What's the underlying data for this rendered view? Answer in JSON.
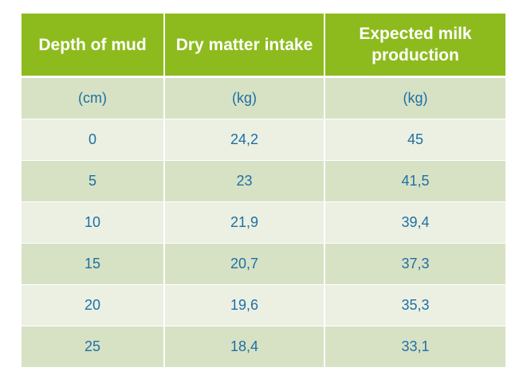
{
  "table": {
    "headers": [
      "Depth of mud",
      "Dry matter intake",
      "Expected milk production"
    ],
    "units": [
      "(cm)",
      "(kg)",
      "(kg)"
    ],
    "rows": [
      [
        "0",
        "24,2",
        "45"
      ],
      [
        "5",
        "23",
        "41,5"
      ],
      [
        "10",
        "21,9",
        "39,4"
      ],
      [
        "15",
        "20,7",
        "37,3"
      ],
      [
        "20",
        "19,6",
        "35,3"
      ],
      [
        "25",
        "18,4",
        "33,1"
      ]
    ]
  },
  "colors": {
    "header_bg": "#8dbb1e",
    "header_text": "#ffffff",
    "row_band_dark": "#d7e2c4",
    "row_band_light": "#ebf0e2",
    "cell_text": "#1f6fa6"
  }
}
